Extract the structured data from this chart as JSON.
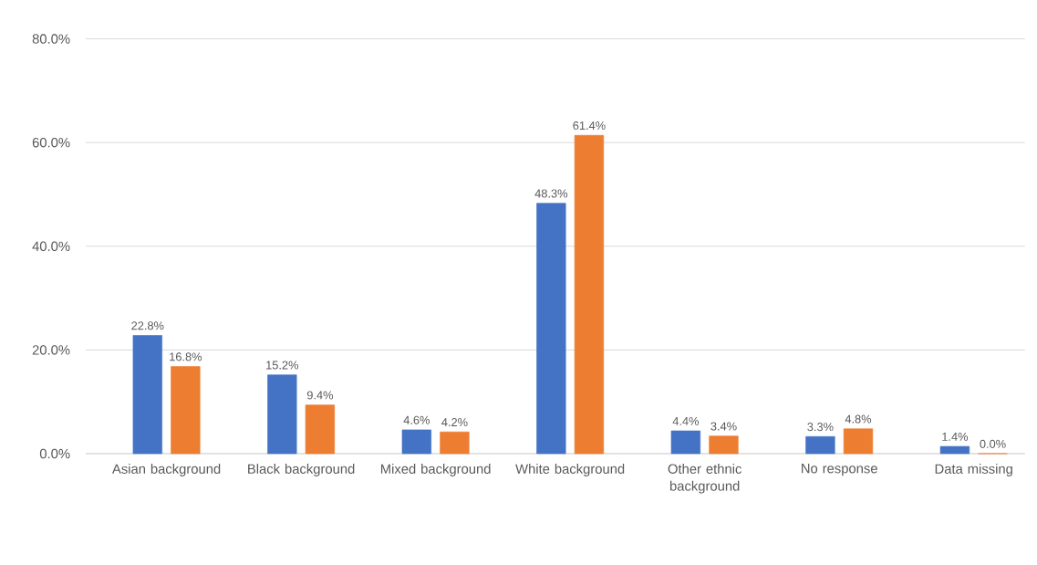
{
  "chart_data": {
    "type": "bar",
    "categories": [
      "Asian background",
      "Black background",
      "Mixed background",
      "White background",
      "Other ethnic background",
      "No response",
      "Data missing"
    ],
    "series": [
      {
        "color": "#4472c4",
        "values": [
          22.8,
          15.2,
          4.6,
          48.3,
          4.4,
          3.3,
          1.4
        ],
        "value_labels": [
          "22.8%",
          "15.2%",
          "4.6%",
          "48.3%",
          "4.4%",
          "3.3%",
          "1.4%"
        ]
      },
      {
        "color": "#ed7d31",
        "values": [
          16.8,
          9.4,
          4.2,
          61.4,
          3.4,
          4.8,
          0.0
        ],
        "value_labels": [
          "16.8%",
          "9.4%",
          "4.2%",
          "61.4%",
          "3.4%",
          "4.8%",
          "0.0%"
        ]
      }
    ],
    "ylim": [
      0,
      80
    ],
    "yticks": [
      {
        "value": 0,
        "label": "0.0%"
      },
      {
        "value": 20,
        "label": "20.0%"
      },
      {
        "value": 40,
        "label": "40.0%"
      },
      {
        "value": 60,
        "label": "60.0%"
      },
      {
        "value": 80,
        "label": "80.0%"
      }
    ],
    "grid": "y"
  }
}
